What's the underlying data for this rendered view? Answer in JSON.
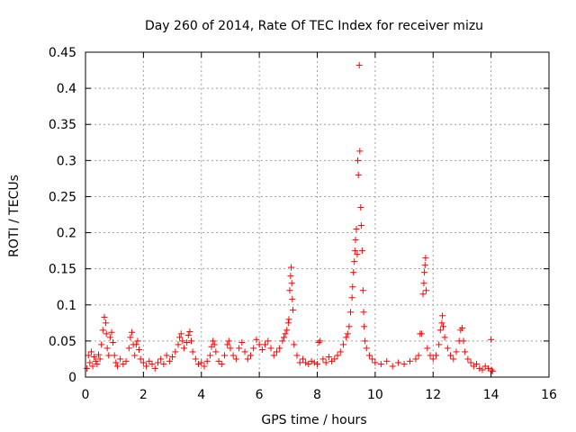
{
  "chart_data": {
    "type": "scatter",
    "title": "Day 260 of 2014, Rate Of TEC Index for receiver mizu",
    "xlabel": "GPS time / hours",
    "ylabel": "ROTI / TECUs",
    "xlim": [
      0,
      16
    ],
    "ylim": [
      0,
      0.45
    ],
    "x_ticks": [
      0,
      2,
      4,
      6,
      8,
      10,
      12,
      14,
      16
    ],
    "y_ticks": [
      0,
      0.05,
      0.1,
      0.15,
      0.2,
      0.25,
      0.3,
      0.35,
      0.4,
      0.45
    ],
    "x_tick_labels": [
      "0",
      "2",
      "4",
      "6",
      "8",
      "10",
      "12",
      "14",
      "16"
    ],
    "y_tick_labels": [
      "0",
      "0.05",
      "0.1",
      "0.15",
      "0.2",
      "0.25",
      "0.3",
      "0.35",
      "0.4",
      "0.45"
    ],
    "grid": true,
    "marker": "+",
    "marker_color": "#ff0000",
    "series": [
      {
        "name": "ROTI",
        "points": [
          [
            0.05,
            0.012
          ],
          [
            0.1,
            0.03
          ],
          [
            0.15,
            0.02
          ],
          [
            0.2,
            0.035
          ],
          [
            0.25,
            0.015
          ],
          [
            0.3,
            0.028
          ],
          [
            0.35,
            0.022
          ],
          [
            0.4,
            0.018
          ],
          [
            0.45,
            0.031
          ],
          [
            0.5,
            0.025
          ],
          [
            0.55,
            0.045
          ],
          [
            0.6,
            0.065
          ],
          [
            0.65,
            0.083
          ],
          [
            0.7,
            0.075
          ],
          [
            0.72,
            0.06
          ],
          [
            0.75,
            0.04
          ],
          [
            0.8,
            0.03
          ],
          [
            0.85,
            0.055
          ],
          [
            0.9,
            0.062
          ],
          [
            0.95,
            0.048
          ],
          [
            1.0,
            0.03
          ],
          [
            1.05,
            0.02
          ],
          [
            1.1,
            0.015
          ],
          [
            1.2,
            0.025
          ],
          [
            1.3,
            0.018
          ],
          [
            1.4,
            0.022
          ],
          [
            1.5,
            0.04
          ],
          [
            1.55,
            0.055
          ],
          [
            1.6,
            0.062
          ],
          [
            1.65,
            0.045
          ],
          [
            1.7,
            0.03
          ],
          [
            1.75,
            0.045
          ],
          [
            1.8,
            0.05
          ],
          [
            1.85,
            0.038
          ],
          [
            1.9,
            0.025
          ],
          [
            2.0,
            0.02
          ],
          [
            2.1,
            0.015
          ],
          [
            2.2,
            0.022
          ],
          [
            2.3,
            0.018
          ],
          [
            2.4,
            0.012
          ],
          [
            2.5,
            0.02
          ],
          [
            2.6,
            0.025
          ],
          [
            2.7,
            0.018
          ],
          [
            2.8,
            0.03
          ],
          [
            2.9,
            0.022
          ],
          [
            3.0,
            0.028
          ],
          [
            3.1,
            0.035
          ],
          [
            3.2,
            0.045
          ],
          [
            3.25,
            0.055
          ],
          [
            3.3,
            0.06
          ],
          [
            3.35,
            0.05
          ],
          [
            3.4,
            0.04
          ],
          [
            3.5,
            0.048
          ],
          [
            3.55,
            0.058
          ],
          [
            3.6,
            0.063
          ],
          [
            3.65,
            0.05
          ],
          [
            3.7,
            0.035
          ],
          [
            3.8,
            0.025
          ],
          [
            3.9,
            0.018
          ],
          [
            4.0,
            0.02
          ],
          [
            4.1,
            0.015
          ],
          [
            4.2,
            0.022
          ],
          [
            4.3,
            0.03
          ],
          [
            4.35,
            0.042
          ],
          [
            4.4,
            0.05
          ],
          [
            4.45,
            0.045
          ],
          [
            4.5,
            0.035
          ],
          [
            4.6,
            0.022
          ],
          [
            4.7,
            0.018
          ],
          [
            4.8,
            0.03
          ],
          [
            4.9,
            0.045
          ],
          [
            4.95,
            0.05
          ],
          [
            5.0,
            0.04
          ],
          [
            5.1,
            0.03
          ],
          [
            5.2,
            0.025
          ],
          [
            5.3,
            0.04
          ],
          [
            5.4,
            0.048
          ],
          [
            5.5,
            0.035
          ],
          [
            5.6,
            0.025
          ],
          [
            5.7,
            0.03
          ],
          [
            5.8,
            0.04
          ],
          [
            5.9,
            0.052
          ],
          [
            6.0,
            0.045
          ],
          [
            6.1,
            0.038
          ],
          [
            6.2,
            0.045
          ],
          [
            6.3,
            0.05
          ],
          [
            6.4,
            0.04
          ],
          [
            6.5,
            0.03
          ],
          [
            6.6,
            0.035
          ],
          [
            6.7,
            0.04
          ],
          [
            6.8,
            0.05
          ],
          [
            6.85,
            0.055
          ],
          [
            6.9,
            0.06
          ],
          [
            6.95,
            0.065
          ],
          [
            7.0,
            0.075
          ],
          [
            7.02,
            0.08
          ],
          [
            7.05,
            0.12
          ],
          [
            7.08,
            0.14
          ],
          [
            7.1,
            0.152
          ],
          [
            7.12,
            0.13
          ],
          [
            7.14,
            0.108
          ],
          [
            7.16,
            0.093
          ],
          [
            7.2,
            0.045
          ],
          [
            7.3,
            0.03
          ],
          [
            7.4,
            0.02
          ],
          [
            7.5,
            0.025
          ],
          [
            7.6,
            0.02
          ],
          [
            7.7,
            0.018
          ],
          [
            7.8,
            0.022
          ],
          [
            7.9,
            0.02
          ],
          [
            8.0,
            0.018
          ],
          [
            8.05,
            0.048
          ],
          [
            8.1,
            0.05
          ],
          [
            8.2,
            0.025
          ],
          [
            8.3,
            0.02
          ],
          [
            8.4,
            0.028
          ],
          [
            8.5,
            0.022
          ],
          [
            8.6,
            0.025
          ],
          [
            8.7,
            0.03
          ],
          [
            8.8,
            0.035
          ],
          [
            8.9,
            0.045
          ],
          [
            9.0,
            0.055
          ],
          [
            9.05,
            0.06
          ],
          [
            9.1,
            0.07
          ],
          [
            9.15,
            0.09
          ],
          [
            9.2,
            0.11
          ],
          [
            9.22,
            0.125
          ],
          [
            9.25,
            0.145
          ],
          [
            9.28,
            0.16
          ],
          [
            9.3,
            0.175
          ],
          [
            9.32,
            0.19
          ],
          [
            9.35,
            0.205
          ],
          [
            9.38,
            0.17
          ],
          [
            9.4,
            0.3
          ],
          [
            9.42,
            0.28
          ],
          [
            9.45,
            0.432
          ],
          [
            9.47,
            0.313
          ],
          [
            9.5,
            0.235
          ],
          [
            9.52,
            0.21
          ],
          [
            9.55,
            0.175
          ],
          [
            9.58,
            0.12
          ],
          [
            9.6,
            0.09
          ],
          [
            9.62,
            0.07
          ],
          [
            9.65,
            0.05
          ],
          [
            9.7,
            0.04
          ],
          [
            9.8,
            0.03
          ],
          [
            9.9,
            0.025
          ],
          [
            10.0,
            0.02
          ],
          [
            10.2,
            0.018
          ],
          [
            10.4,
            0.022
          ],
          [
            10.6,
            0.015
          ],
          [
            10.8,
            0.02
          ],
          [
            11.0,
            0.018
          ],
          [
            11.2,
            0.022
          ],
          [
            11.4,
            0.025
          ],
          [
            11.5,
            0.03
          ],
          [
            11.55,
            0.06
          ],
          [
            11.6,
            0.06
          ],
          [
            11.65,
            0.115
          ],
          [
            11.68,
            0.13
          ],
          [
            11.7,
            0.145
          ],
          [
            11.72,
            0.155
          ],
          [
            11.74,
            0.165
          ],
          [
            11.76,
            0.12
          ],
          [
            11.8,
            0.04
          ],
          [
            11.9,
            0.03
          ],
          [
            12.0,
            0.025
          ],
          [
            12.1,
            0.03
          ],
          [
            12.2,
            0.045
          ],
          [
            12.25,
            0.065
          ],
          [
            12.3,
            0.075
          ],
          [
            12.32,
            0.085
          ],
          [
            12.35,
            0.07
          ],
          [
            12.4,
            0.055
          ],
          [
            12.5,
            0.04
          ],
          [
            12.6,
            0.03
          ],
          [
            12.7,
            0.025
          ],
          [
            12.8,
            0.035
          ],
          [
            12.9,
            0.05
          ],
          [
            12.95,
            0.065
          ],
          [
            13.0,
            0.068
          ],
          [
            13.05,
            0.05
          ],
          [
            13.1,
            0.035
          ],
          [
            13.2,
            0.025
          ],
          [
            13.3,
            0.02
          ],
          [
            13.4,
            0.015
          ],
          [
            13.5,
            0.018
          ],
          [
            13.6,
            0.012
          ],
          [
            13.7,
            0.01
          ],
          [
            13.8,
            0.015
          ],
          [
            13.9,
            0.012
          ],
          [
            14.0,
            0.052
          ],
          [
            14.02,
            0.01
          ],
          [
            14.05,
            0.008
          ]
        ]
      }
    ]
  }
}
